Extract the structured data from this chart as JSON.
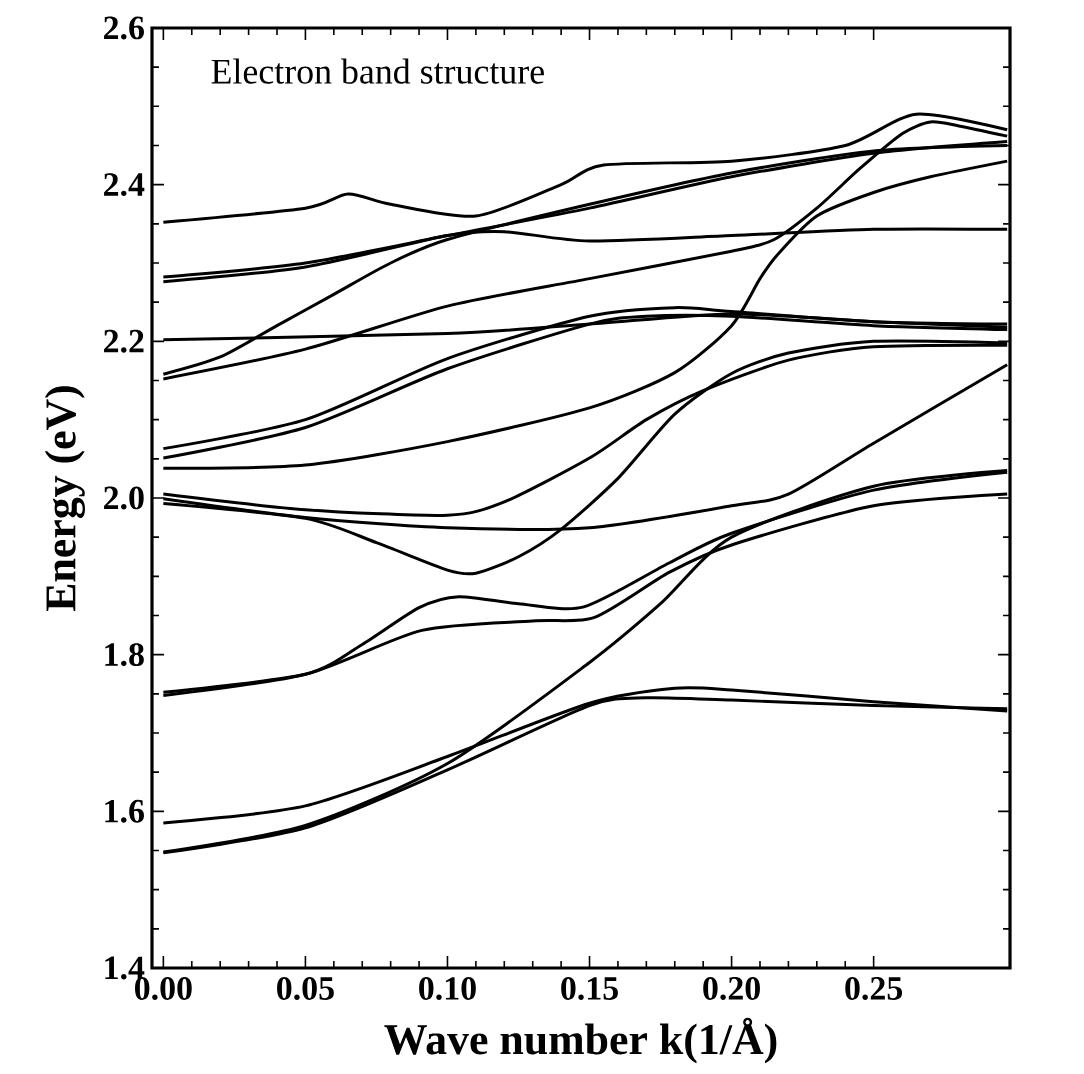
{
  "chart_data": {
    "type": "line",
    "xlabel": "Wave number k(1/Å)",
    "ylabel": "Energy (eV)",
    "annotations": [
      "Electron band structure"
    ],
    "xlim": [
      -0.004,
      0.298
    ],
    "ylim": [
      1.4,
      2.6
    ],
    "xticks": [
      {
        "value": 0,
        "label": "0.00"
      },
      {
        "value": 0.05,
        "label": "0.05"
      },
      {
        "value": 0.1,
        "label": "0.10"
      },
      {
        "value": 0.15,
        "label": "0.15"
      },
      {
        "value": 0.2,
        "label": "0.20"
      },
      {
        "value": 0.25,
        "label": "0.25"
      }
    ],
    "yticks": [
      {
        "value": 1.4,
        "label": "1.4"
      },
      {
        "value": 1.6,
        "label": "1.6"
      },
      {
        "value": 1.8,
        "label": "1.8"
      },
      {
        "value": 2.0,
        "label": "2.0"
      },
      {
        "value": 2.2,
        "label": "2.2"
      },
      {
        "value": 2.4,
        "label": "2.4"
      },
      {
        "value": 2.6,
        "label": "2.6"
      }
    ],
    "series": [
      {
        "color": "#000000",
        "x": [
          0,
          0.05,
          0.1,
          0.15,
          0.17,
          0.2,
          0.25,
          0.297
        ],
        "values": [
          1.547,
          1.579,
          1.653,
          1.735,
          1.745,
          1.742,
          1.735,
          1.731
        ]
      },
      {
        "color": "#000000",
        "x": [
          0,
          0.05,
          0.1,
          0.15,
          0.175,
          0.2,
          0.25,
          0.297
        ],
        "values": [
          1.548,
          1.582,
          1.661,
          1.79,
          1.865,
          1.95,
          2.015,
          2.035
        ]
      },
      {
        "color": "#000000",
        "x": [
          0,
          0.05,
          0.1,
          0.15,
          0.18,
          0.2,
          0.25,
          0.297
        ],
        "values": [
          1.585,
          1.607,
          1.67,
          1.738,
          1.757,
          1.755,
          1.74,
          1.728
        ]
      },
      {
        "color": "#000000",
        "x": [
          0,
          0.05,
          0.07,
          0.09,
          0.104,
          0.125,
          0.148,
          0.178,
          0.2,
          0.25,
          0.297
        ],
        "values": [
          1.752,
          1.775,
          1.813,
          1.86,
          1.874,
          1.865,
          1.861,
          1.917,
          1.955,
          2.01,
          2.033
        ]
      },
      {
        "color": "#000000",
        "x": [
          0,
          0.05,
          0.091,
          0.13,
          0.152,
          0.178,
          0.2,
          0.25,
          0.297
        ],
        "values": [
          1.748,
          1.775,
          1.831,
          1.843,
          1.848,
          1.905,
          1.94,
          1.99,
          2.005
        ]
      },
      {
        "color": "#000000",
        "x": [
          0,
          0.05,
          0.075,
          0.1,
          0.11,
          0.125,
          0.14,
          0.16,
          0.18,
          0.2,
          0.22,
          0.25,
          0.297
        ],
        "values": [
          1.993,
          1.974,
          1.943,
          1.908,
          1.904,
          1.925,
          1.96,
          2.025,
          2.107,
          2.159,
          2.185,
          2.2,
          2.198
        ]
      },
      {
        "color": "#000000",
        "x": [
          0,
          0.05,
          0.1,
          0.15,
          0.2,
          0.22,
          0.25,
          0.297
        ],
        "values": [
          1.999,
          1.975,
          1.962,
          1.962,
          1.99,
          2.005,
          2.07,
          2.17
        ]
      },
      {
        "color": "#000000",
        "x": [
          0,
          0.05,
          0.1,
          0.12,
          0.15,
          0.17,
          0.19,
          0.22,
          0.25,
          0.297
        ],
        "values": [
          2.005,
          1.985,
          1.978,
          1.995,
          2.051,
          2.1,
          2.137,
          2.176,
          2.193,
          2.195
        ]
      },
      {
        "color": "#000000",
        "x": [
          0,
          0.05,
          0.1,
          0.15,
          0.18,
          0.2,
          0.21,
          0.216,
          0.23,
          0.25,
          0.27,
          0.297
        ],
        "values": [
          2.038,
          2.042,
          2.072,
          2.115,
          2.16,
          2.22,
          2.28,
          2.31,
          2.36,
          2.39,
          2.41,
          2.43
        ]
      },
      {
        "color": "#000000",
        "x": [
          0,
          0.05,
          0.1,
          0.15,
          0.17,
          0.2,
          0.25,
          0.297
        ],
        "values": [
          2.051,
          2.09,
          2.165,
          2.222,
          2.232,
          2.232,
          2.22,
          2.215
        ]
      },
      {
        "color": "#000000",
        "x": [
          0,
          0.05,
          0.1,
          0.15,
          0.18,
          0.2,
          0.25,
          0.297
        ],
        "values": [
          2.063,
          2.1,
          2.178,
          2.232,
          2.243,
          2.238,
          2.225,
          2.222
        ]
      },
      {
        "color": "#000000",
        "x": [
          0,
          0.02,
          0.04,
          0.06,
          0.08,
          0.1,
          0.15,
          0.2,
          0.25,
          0.297
        ],
        "values": [
          2.158,
          2.18,
          2.22,
          2.26,
          2.3,
          2.33,
          2.375,
          2.415,
          2.443,
          2.45
        ]
      },
      {
        "color": "#000000",
        "x": [
          0,
          0.05,
          0.1,
          0.15,
          0.2,
          0.215,
          0.23,
          0.245,
          0.26,
          0.27,
          0.28,
          0.297
        ],
        "values": [
          2.152,
          2.19,
          2.245,
          2.28,
          2.315,
          2.33,
          2.37,
          2.42,
          2.465,
          2.48,
          2.475,
          2.462
        ]
      },
      {
        "color": "#000000",
        "x": [
          0,
          0.1,
          0.15,
          0.2,
          0.25,
          0.297
        ],
        "values": [
          2.202,
          2.21,
          2.222,
          2.235,
          2.225,
          2.218
        ]
      },
      {
        "color": "#000000",
        "x": [
          0,
          0.05,
          0.1,
          0.12,
          0.15,
          0.2,
          0.25,
          0.297
        ],
        "values": [
          2.276,
          2.295,
          2.335,
          2.34,
          2.328,
          2.335,
          2.343,
          2.343
        ]
      },
      {
        "color": "#000000",
        "x": [
          0,
          0.05,
          0.1,
          0.15,
          0.2,
          0.25,
          0.297
        ],
        "values": [
          2.282,
          2.3,
          2.335,
          2.37,
          2.41,
          2.44,
          2.455
        ]
      },
      {
        "color": "#000000",
        "x": [
          0,
          0.05,
          0.065,
          0.08,
          0.11,
          0.14,
          0.155,
          0.2,
          0.24,
          0.265,
          0.297
        ],
        "values": [
          2.352,
          2.37,
          2.388,
          2.375,
          2.36,
          2.4,
          2.425,
          2.43,
          2.45,
          2.49,
          2.47
        ]
      }
    ]
  }
}
